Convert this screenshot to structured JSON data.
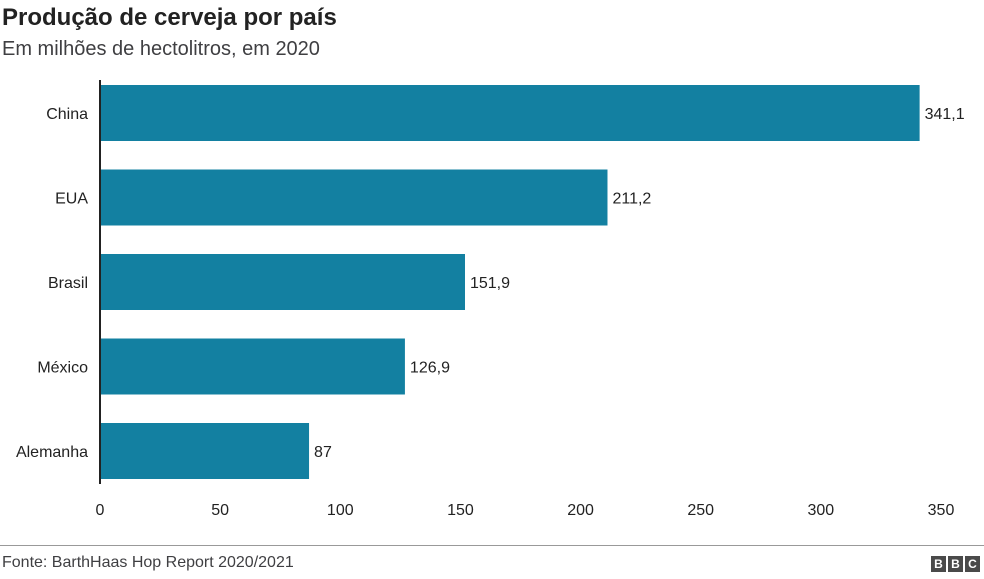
{
  "header": {
    "title": "Produção de cerveja por país",
    "subtitle": "Em milhões de hectolitros, em 2020"
  },
  "footer": {
    "source": "Fonte: BarthHaas Hop Report 2020/2021",
    "logo_letters": [
      "B",
      "B",
      "C"
    ]
  },
  "colors": {
    "bar": "#1380a1",
    "axis": "#222222"
  },
  "chart_data": {
    "type": "bar",
    "orientation": "horizontal",
    "title": "Produção de cerveja por país",
    "subtitle": "Em milhões de hectolitros, em 2020",
    "categories": [
      "China",
      "EUA",
      "Brasil",
      "México",
      "Alemanha"
    ],
    "values": [
      341.1,
      211.2,
      151.9,
      126.9,
      87
    ],
    "value_labels": [
      "341,1",
      "211,2",
      "151,9",
      "126,9",
      "87"
    ],
    "xlim": [
      0,
      350
    ],
    "ticks": [
      0,
      50,
      100,
      150,
      200,
      250,
      300,
      350
    ],
    "tick_labels": [
      "0",
      "50",
      "100",
      "150",
      "200",
      "250",
      "300",
      "350"
    ],
    "grid": false
  }
}
